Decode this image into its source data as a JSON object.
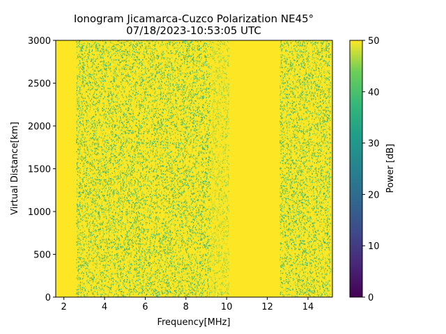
{
  "chart_data": {
    "type": "heatmap",
    "title": "Ionogram Jicamarca-Cuzco Polarization NE45°",
    "subtitle": "07/18/2023-10:53:05 UTC",
    "xlabel": "Frequency[MHz]",
    "ylabel": "Virtual Distance[km]",
    "xlim": [
      1.6,
      15.2
    ],
    "ylim": [
      0,
      3000
    ],
    "x_ticks": [
      2,
      4,
      6,
      8,
      10,
      12,
      14
    ],
    "y_ticks": [
      0,
      500,
      1000,
      1500,
      2000,
      2500,
      3000
    ],
    "colorbar": {
      "label": "Power [dB]",
      "range": [
        0,
        50
      ],
      "ticks": [
        0,
        10,
        20,
        30,
        40,
        50
      ],
      "colormap": "viridis"
    },
    "background_power_db": 50,
    "noise_bands": [
      {
        "x_range": [
          2.6,
          9.2
        ],
        "min_power_db": 30
      },
      {
        "x_range": [
          9.2,
          10.1
        ],
        "min_power_db": 40
      },
      {
        "x_range": [
          12.6,
          15.1
        ],
        "min_power_db": 30
      }
    ],
    "colors": {
      "viridis_50": "#fde725",
      "viridis_40": "#5ec962",
      "viridis_30": "#21918c",
      "viridis_20": "#3b528b",
      "viridis_0": "#440154"
    }
  }
}
